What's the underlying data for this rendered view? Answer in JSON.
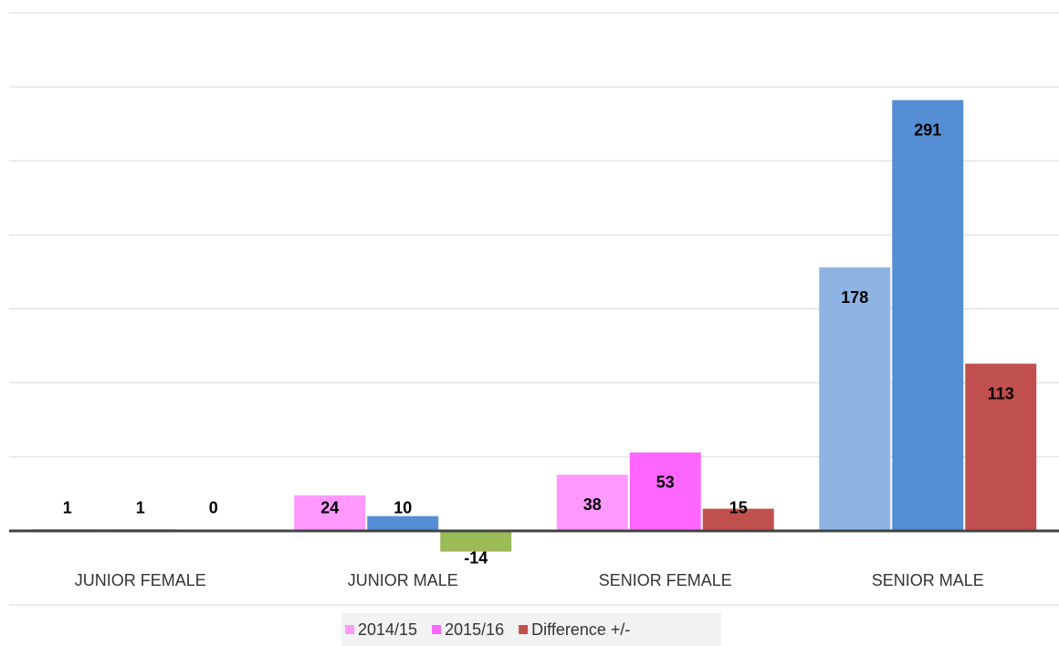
{
  "chart_data": {
    "type": "bar",
    "categories": [
      "JUNIOR FEMALE",
      "JUNIOR MALE",
      "SENIOR FEMALE",
      "SENIOR MALE"
    ],
    "series": [
      {
        "name": "2014/15",
        "color": "#ff99ff",
        "colors": [
          "#a05aa0",
          "#ff99ff",
          "#ff99ff",
          "#8eb4e3"
        ],
        "values": [
          1,
          24,
          38,
          178
        ]
      },
      {
        "name": "2015/16",
        "color": "#ff66ff",
        "colors": [
          "#a05aa0",
          "#558ed5",
          "#ff66ff",
          "#558ed5"
        ],
        "values": [
          1,
          10,
          53,
          291
        ]
      },
      {
        "name": "Difference +/-",
        "color": "#c0504d",
        "colors": [
          "#a05aa0",
          "#9bbb59",
          "#c0504d",
          "#c0504d"
        ],
        "values": [
          0,
          -14,
          15,
          113
        ]
      }
    ],
    "ylim": [
      -50,
      350
    ],
    "yticks": [
      -50,
      0,
      50,
      100,
      150,
      200,
      250,
      300,
      350
    ],
    "grid": true,
    "legend": "bottom"
  }
}
